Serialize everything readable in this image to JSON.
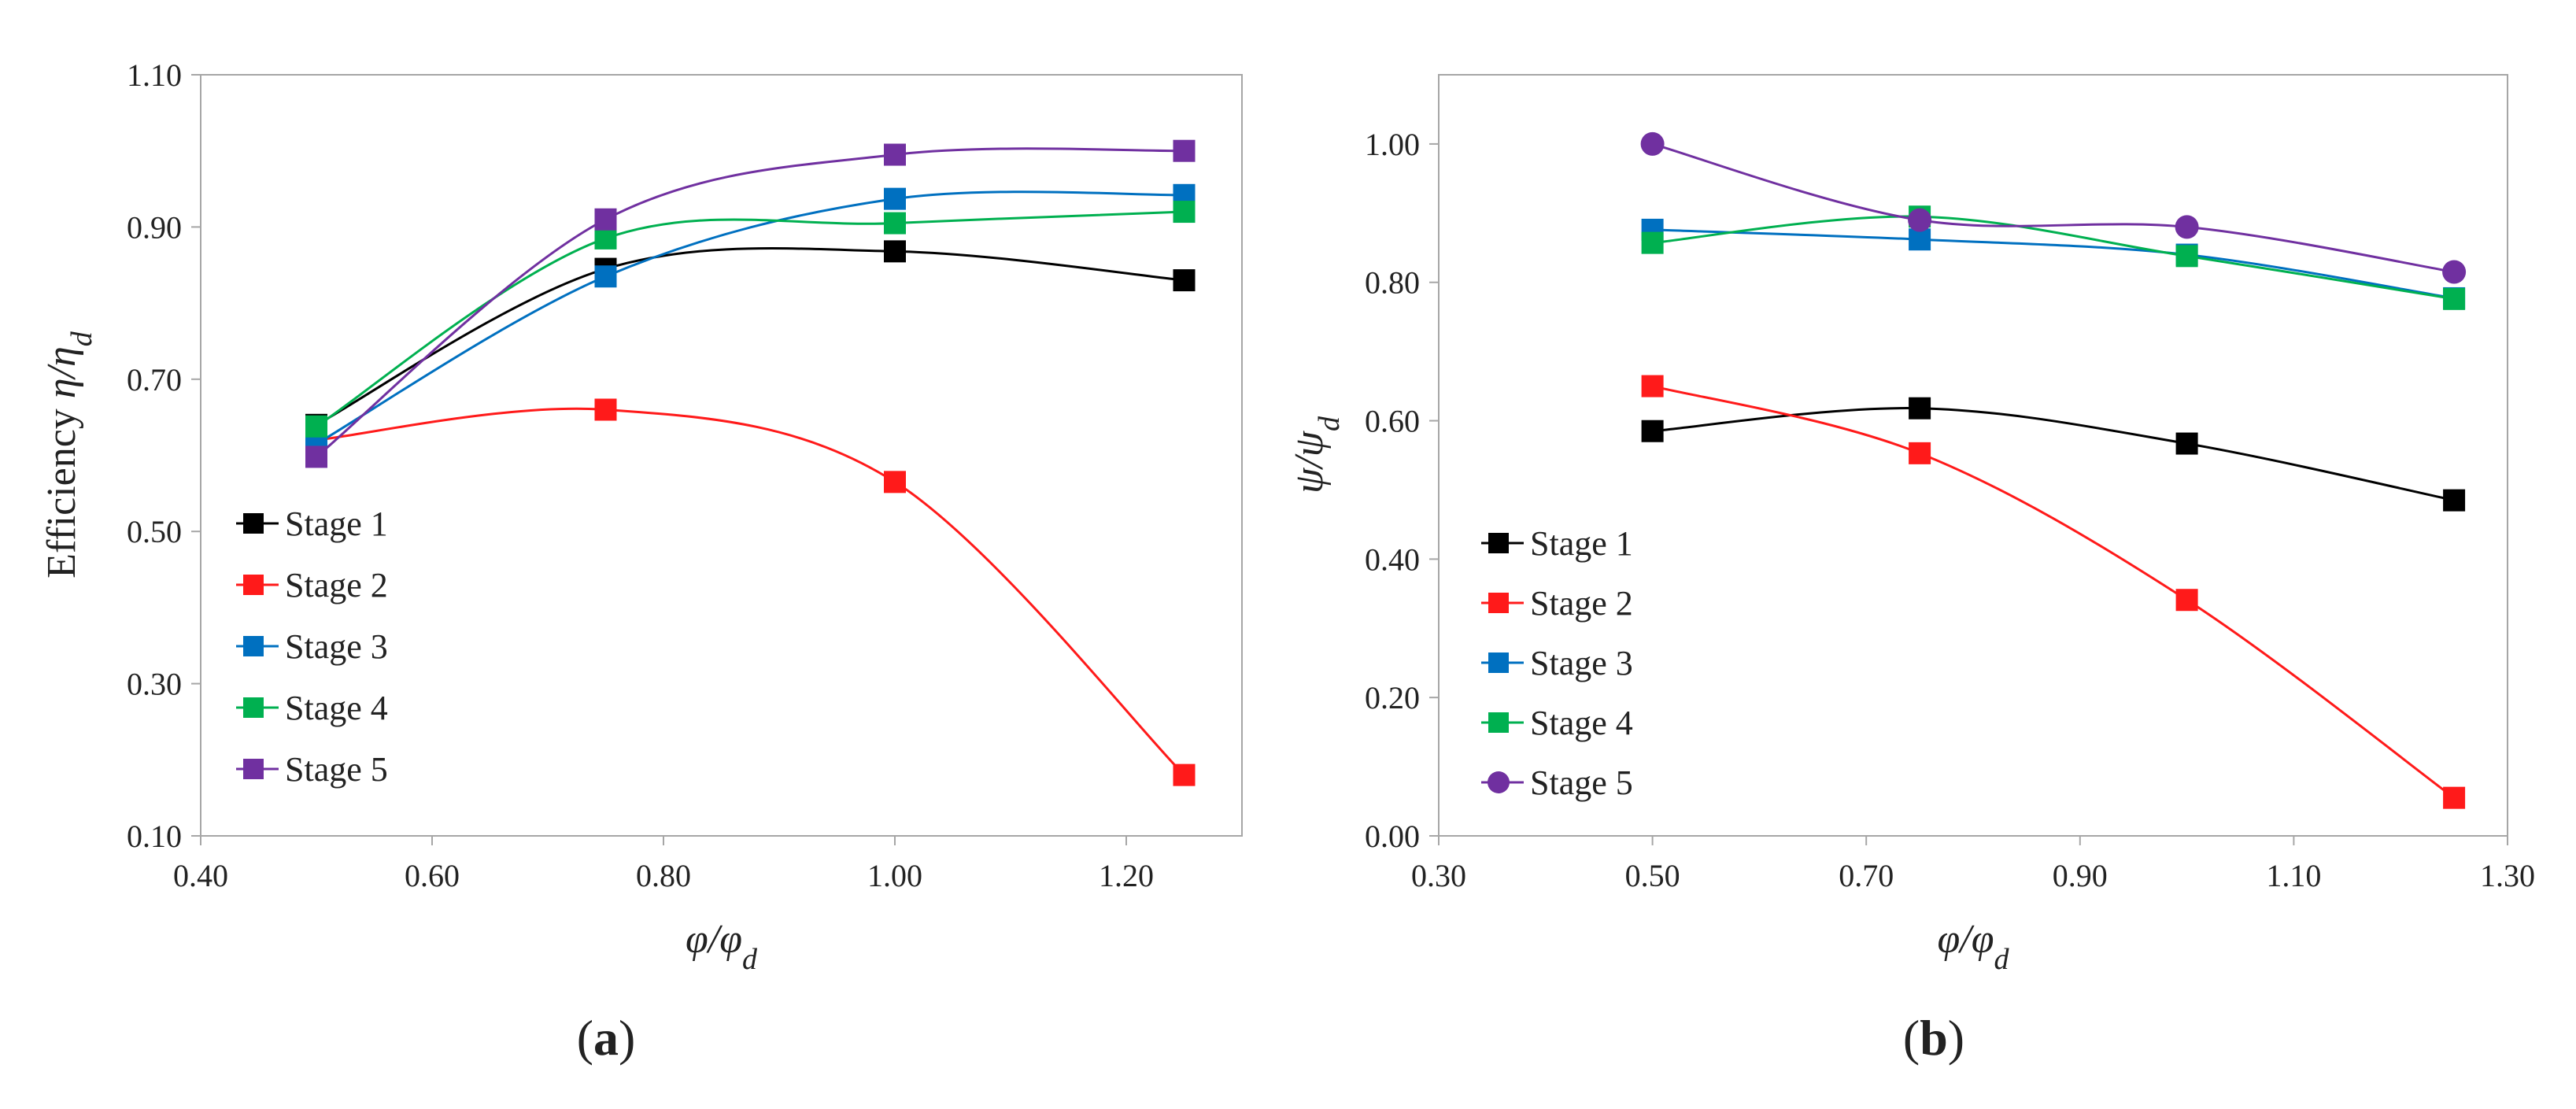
{
  "chart_data": [
    {
      "type": "line",
      "panel": "a",
      "panel_label": "a",
      "title": "",
      "ylabel_prefix": "Efficiency ",
      "ylabel_symbol": "η/η",
      "ylabel_sub": "d",
      "xlabel_symbol": "φ/φ",
      "xlabel_sub": "d",
      "xlim": [
        0.4,
        1.3
      ],
      "ylim": [
        0.1,
        1.1
      ],
      "xticks": [
        "0.40",
        "0.60",
        "0.80",
        "1.00",
        "1.20"
      ],
      "xtick_values": [
        0.4,
        0.6,
        0.8,
        1.0,
        1.2
      ],
      "yticks": [
        "0.10",
        "0.30",
        "0.50",
        "0.70",
        "0.90",
        "1.10"
      ],
      "ytick_values": [
        0.1,
        0.3,
        0.5,
        0.7,
        0.9,
        1.1
      ],
      "grid": false,
      "legend_position": "lower-left",
      "x": [
        0.5,
        0.75,
        1.0,
        1.25
      ],
      "series": [
        {
          "name": "Stage 1",
          "color": "#000000",
          "marker": "square",
          "values": [
            0.64,
            0.845,
            0.868,
            0.83
          ]
        },
        {
          "name": "Stage 2",
          "color": "#ff1a1a",
          "marker": "square",
          "values": [
            0.62,
            0.66,
            0.565,
            0.18
          ]
        },
        {
          "name": "Stage 3",
          "color": "#0070c0",
          "marker": "square",
          "values": [
            0.615,
            0.835,
            0.937,
            0.942
          ]
        },
        {
          "name": "Stage 4",
          "color": "#00b050",
          "marker": "square",
          "values": [
            0.638,
            0.885,
            0.905,
            0.92
          ]
        },
        {
          "name": "Stage 5",
          "color": "#7030a0",
          "marker": "square",
          "values": [
            0.598,
            0.91,
            0.995,
            1.0
          ]
        }
      ]
    },
    {
      "type": "line",
      "panel": "b",
      "panel_label": "b",
      "title": "",
      "ylabel_prefix": "",
      "ylabel_symbol": "ψ/ψ",
      "ylabel_sub": "d",
      "xlabel_symbol": "φ/φ",
      "xlabel_sub": "d",
      "xlim": [
        0.3,
        1.3
      ],
      "ylim": [
        0.0,
        1.1
      ],
      "xticks": [
        "0.30",
        "0.50",
        "0.70",
        "0.90",
        "1.10",
        "1.30"
      ],
      "xtick_values": [
        0.3,
        0.5,
        0.7,
        0.9,
        1.1,
        1.3
      ],
      "yticks": [
        "0.00",
        "0.20",
        "0.40",
        "0.60",
        "0.80",
        "1.00"
      ],
      "ytick_values": [
        0.0,
        0.2,
        0.4,
        0.6,
        0.8,
        1.0
      ],
      "grid": false,
      "legend_position": "lower-left",
      "x": [
        0.5,
        0.75,
        1.0,
        1.25
      ],
      "series": [
        {
          "name": "Stage 1",
          "color": "#000000",
          "marker": "square",
          "values": [
            0.585,
            0.618,
            0.567,
            0.485
          ]
        },
        {
          "name": "Stage 2",
          "color": "#ff1a1a",
          "marker": "square",
          "values": [
            0.65,
            0.553,
            0.341,
            0.055
          ]
        },
        {
          "name": "Stage 3",
          "color": "#0070c0",
          "marker": "square",
          "values": [
            0.876,
            0.862,
            0.84,
            0.777
          ]
        },
        {
          "name": "Stage 4",
          "color": "#00b050",
          "marker": "square",
          "values": [
            0.857,
            0.895,
            0.838,
            0.776
          ]
        },
        {
          "name": "Stage 5",
          "color": "#7030a0",
          "marker": "circle",
          "values": [
            1.0,
            0.89,
            0.88,
            0.815
          ]
        }
      ]
    }
  ]
}
